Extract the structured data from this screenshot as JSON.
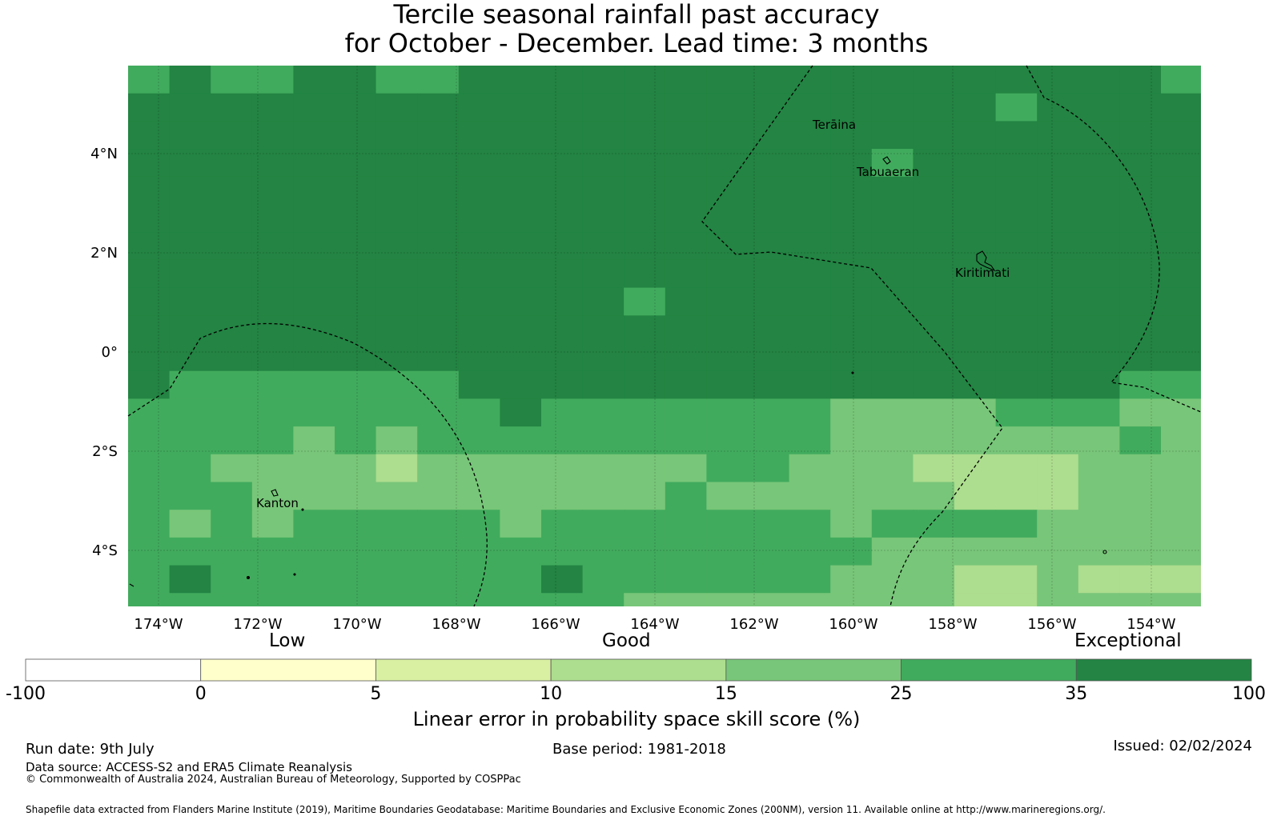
{
  "title": {
    "line1": "Tercile seasonal rainfall past accuracy",
    "line2": "for October - December. Lead time: 3 months"
  },
  "map": {
    "lon_ticks": [
      "174°W",
      "172°W",
      "170°W",
      "168°W",
      "166°W",
      "164°W",
      "162°W",
      "160°W",
      "158°W",
      "156°W",
      "154°W"
    ],
    "lat_ticks": [
      "4°N",
      "2°N",
      "0°",
      "2°S",
      "4°S"
    ],
    "places": [
      {
        "name": "Terāina"
      },
      {
        "name": "Tabuaeran"
      },
      {
        "name": "Kiritimati"
      },
      {
        "name": "Kanton"
      }
    ]
  },
  "colorbar": {
    "categories": [
      "Low",
      "Good",
      "Exceptional"
    ],
    "ticks": [
      "-100",
      "0",
      "5",
      "10",
      "15",
      "25",
      "35",
      "100"
    ],
    "colors": [
      "#ffffff",
      "#ffffcc",
      "#d9f0a3",
      "#addd8e",
      "#78c679",
      "#41ab5d",
      "#238443"
    ],
    "label": "Linear error in probability space skill score (%)"
  },
  "footer": {
    "run_date": "Run date: 9th July",
    "base_period": "Base period: 1981-2018",
    "issued": "Issued: 02/02/2024",
    "data_source": "Data source: ACCESS-S2 and ERA5 Climate Reanalysis",
    "copyright": "© Commonwealth of Australia 2024, Australian Bureau of Meteorology, Supported by COSPPac",
    "shapefile": "Shapefile data extracted from Flanders Marine Institute (2019), Maritime Boundaries Geodatabase: Maritime Boundaries and Exclusive Economic Zones (200NM), version 11. Available online at http://www.marineregions.org/."
  }
}
